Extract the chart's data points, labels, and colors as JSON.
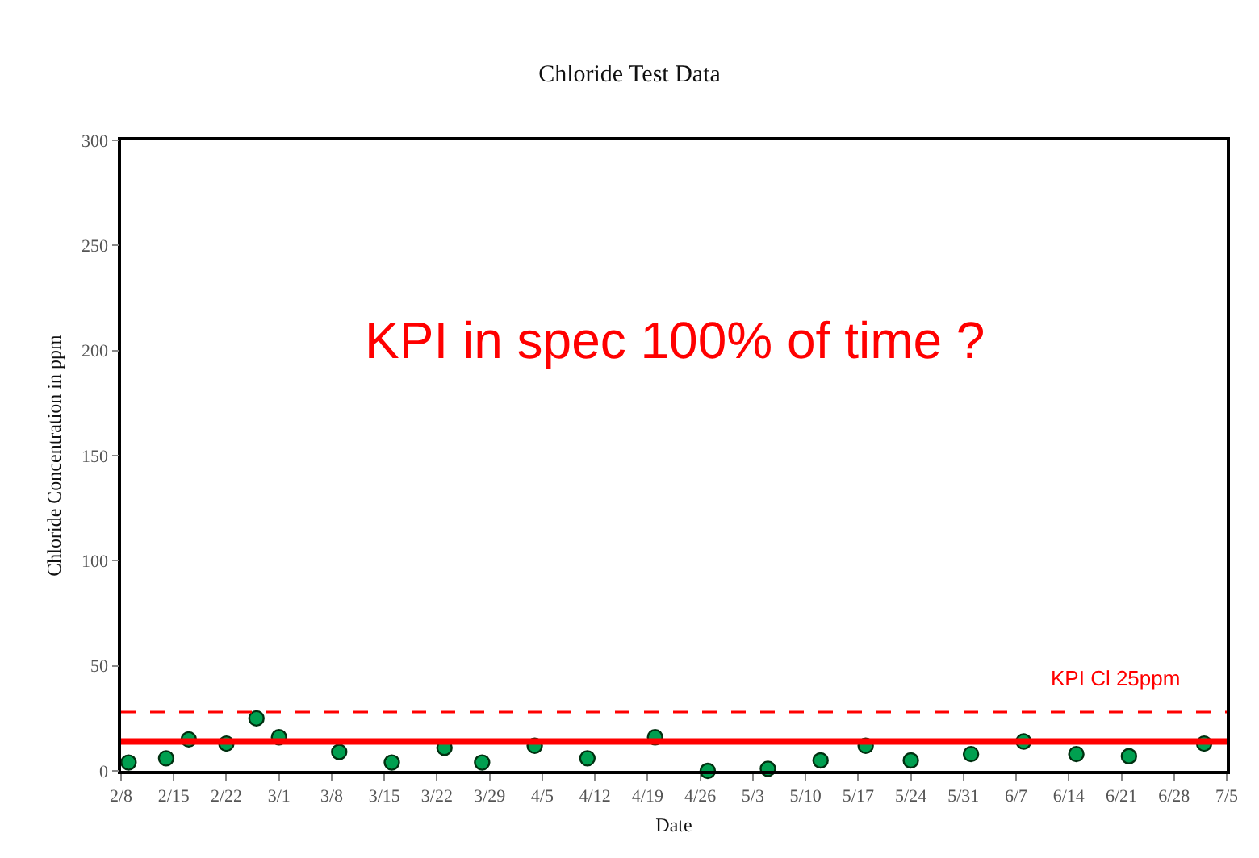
{
  "chart_data": {
    "type": "scatter",
    "title": "Chloride Test Data",
    "xlabel": "Date",
    "ylabel": "Chloride Concentration in ppm",
    "x": [
      "--02-09",
      "--02-14",
      "--02-17",
      "--02-22",
      "--02-26",
      "--03-01",
      "--03-09",
      "--03-16",
      "--03-23",
      "--03-28",
      "--04-04",
      "--04-11",
      "--04-20",
      "--04-27",
      "--05-05",
      "--05-12",
      "--05-18",
      "--05-24",
      "--06-01",
      "--06-08",
      "--06-15",
      "--06-22",
      "--07-02"
    ],
    "values": [
      4,
      6,
      15,
      13,
      25,
      16,
      9,
      4,
      11,
      4,
      12,
      6,
      16,
      0,
      1,
      5,
      12,
      5,
      8,
      14,
      8,
      7,
      13
    ],
    "color": "#00a050",
    "marker": "circle",
    "xlim": [
      "--02-08",
      "--07-05"
    ],
    "xticks": [
      {
        "value": "--02-08",
        "label": "2/8"
      },
      {
        "value": "--02-15",
        "label": "2/15"
      },
      {
        "value": "--02-22",
        "label": "2/22"
      },
      {
        "value": "--03-01",
        "label": "3/1"
      },
      {
        "value": "--03-08",
        "label": "3/8"
      },
      {
        "value": "--03-15",
        "label": "3/15"
      },
      {
        "value": "--03-22",
        "label": "3/22"
      },
      {
        "value": "--03-29",
        "label": "3/29"
      },
      {
        "value": "--04-05",
        "label": "4/5"
      },
      {
        "value": "--04-12",
        "label": "4/12"
      },
      {
        "value": "--04-19",
        "label": "4/19"
      },
      {
        "value": "--04-26",
        "label": "4/26"
      },
      {
        "value": "--05-03",
        "label": "5/3"
      },
      {
        "value": "--05-10",
        "label": "5/10"
      },
      {
        "value": "--05-17",
        "label": "5/17"
      },
      {
        "value": "--05-24",
        "label": "5/24"
      },
      {
        "value": "--05-31",
        "label": "5/31"
      },
      {
        "value": "--06-07",
        "label": "6/7"
      },
      {
        "value": "--06-14",
        "label": "6/14"
      },
      {
        "value": "--06-21",
        "label": "6/21"
      },
      {
        "value": "--06-28",
        "label": "6/28"
      },
      {
        "value": "--07-05",
        "label": "7/5"
      }
    ],
    "ylim": [
      0,
      300
    ],
    "yticks": [
      0,
      50,
      100,
      150,
      200,
      250,
      300
    ],
    "ref_lines": [
      {
        "axis": "y",
        "value": 14,
        "color": "#ff0000",
        "line_style": "solid"
      },
      {
        "axis": "y",
        "value": 28,
        "color": "#ff0000",
        "line_style": "dashed",
        "label": "KPI Cl 25ppm"
      }
    ],
    "annotations": [
      "KPI in spec 100% of time ?"
    ],
    "grid": false,
    "legend": false
  }
}
